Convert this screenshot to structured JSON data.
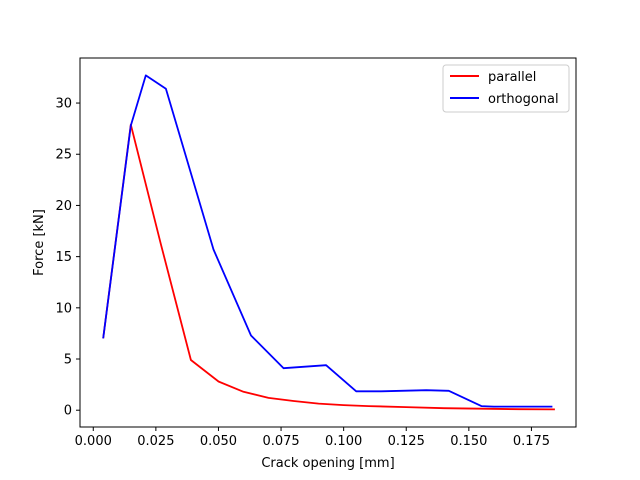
{
  "chart_data": {
    "type": "line",
    "title": "",
    "xlabel": "Crack opening [mm]",
    "ylabel": "Force [kN]",
    "xlim": [
      -0.0053,
      0.1928
    ],
    "ylim": [
      -1.64,
      34.4
    ],
    "xticks": [
      0.0,
      0.025,
      0.05,
      0.075,
      0.1,
      0.125,
      0.15,
      0.175
    ],
    "xtick_labels": [
      "0.000",
      "0.025",
      "0.050",
      "0.075",
      "0.100",
      "0.125",
      "0.150",
      "0.175"
    ],
    "yticks": [
      0,
      5,
      10,
      15,
      20,
      25,
      30
    ],
    "ytick_labels": [
      "0",
      "5",
      "10",
      "15",
      "20",
      "25",
      "30"
    ],
    "grid": false,
    "legend_position": "top-right",
    "series": [
      {
        "name": "parallel",
        "color": "#ff0000",
        "x": [
          0.004,
          0.015,
          0.027,
          0.039,
          0.05,
          0.06,
          0.07,
          0.08,
          0.09,
          0.1,
          0.11,
          0.125,
          0.14,
          0.155,
          0.17,
          0.184
        ],
        "y": [
          7.1,
          27.9,
          16.2,
          4.9,
          2.8,
          1.8,
          1.2,
          0.9,
          0.65,
          0.5,
          0.4,
          0.3,
          0.2,
          0.15,
          0.1,
          0.08
        ]
      },
      {
        "name": "orthogonal",
        "color": "#0000ff",
        "x": [
          0.004,
          0.015,
          0.021,
          0.029,
          0.048,
          0.063,
          0.076,
          0.093,
          0.105,
          0.115,
          0.133,
          0.142,
          0.155,
          0.16,
          0.17,
          0.183
        ],
        "y": [
          7.1,
          27.8,
          32.7,
          31.4,
          15.7,
          7.3,
          4.1,
          4.4,
          1.85,
          1.85,
          1.95,
          1.9,
          0.4,
          0.35,
          0.35,
          0.35
        ]
      }
    ]
  }
}
